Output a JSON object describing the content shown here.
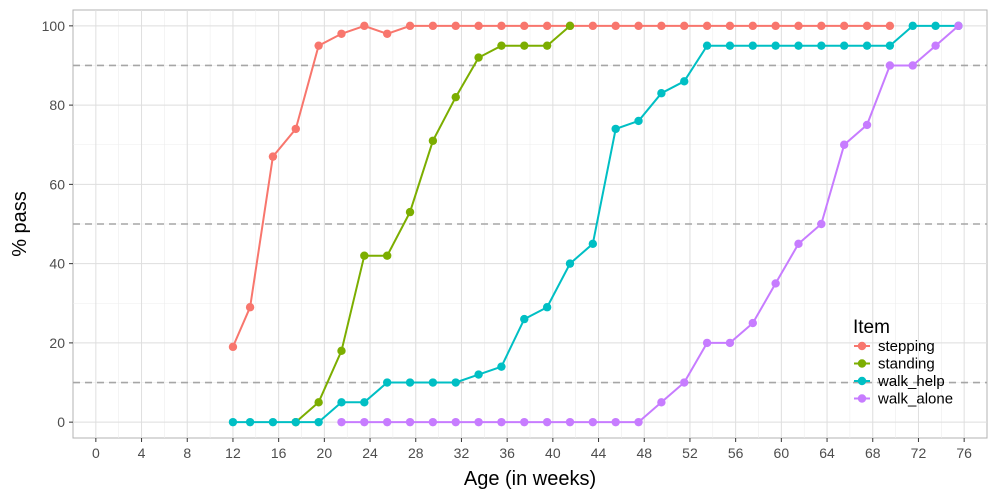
{
  "chart_data": {
    "type": "line",
    "xlabel": "Age (in weeks)",
    "ylabel": "% pass",
    "xlim": [
      -2,
      78
    ],
    "ylim": [
      -4,
      104
    ],
    "x_ticks": [
      0,
      4,
      8,
      12,
      16,
      20,
      24,
      28,
      32,
      36,
      40,
      44,
      48,
      52,
      56,
      60,
      64,
      68,
      72,
      76
    ],
    "y_ticks": [
      0,
      20,
      40,
      60,
      80,
      100
    ],
    "reference_lines": [
      10,
      50,
      90
    ],
    "grid": true,
    "legend": {
      "title": "Item",
      "placement": "bottom-right"
    },
    "series": [
      {
        "name": "stepping",
        "color": "#f8766d",
        "x": [
          12,
          13.5,
          15.5,
          17.5,
          19.5,
          21.5,
          23.5,
          25.5,
          27.5,
          29.5,
          31.5,
          33.5,
          35.5,
          37.5,
          39.5,
          41.5,
          43.5,
          45.5,
          47.5,
          49.5,
          51.5,
          53.5,
          55.5,
          57.5,
          59.5,
          61.5,
          63.5,
          65.5,
          67.5,
          69.5
        ],
        "y": [
          19,
          29,
          67,
          74,
          95,
          98,
          100,
          98,
          100,
          100,
          100,
          100,
          100,
          100,
          100,
          100,
          100,
          100,
          100,
          100,
          100,
          100,
          100,
          100,
          100,
          100,
          100,
          100,
          100,
          100
        ]
      },
      {
        "name": "standing",
        "color": "#7cae00",
        "x": [
          17.5,
          19.5,
          21.5,
          23.5,
          25.5,
          27.5,
          29.5,
          31.5,
          33.5,
          35.5,
          37.5,
          39.5,
          41.5
        ],
        "y": [
          0,
          5,
          18,
          42,
          42,
          53,
          71,
          82,
          92,
          95,
          95,
          95,
          100
        ]
      },
      {
        "name": "walk_help",
        "color": "#00bfc4",
        "x": [
          12,
          13.5,
          15.5,
          17.5,
          19.5,
          21.5,
          23.5,
          25.5,
          27.5,
          29.5,
          31.5,
          33.5,
          35.5,
          37.5,
          39.5,
          41.5,
          43.5,
          45.5,
          47.5,
          49.5,
          51.5,
          53.5,
          55.5,
          57.5,
          59.5,
          61.5,
          63.5,
          65.5,
          67.5,
          69.5,
          71.5,
          73.5,
          75.5
        ],
        "y": [
          0,
          0,
          0,
          0,
          0,
          5,
          5,
          10,
          10,
          10,
          10,
          12,
          14,
          26,
          29,
          40,
          45,
          74,
          76,
          83,
          86,
          95,
          95,
          95,
          95,
          95,
          95,
          95,
          95,
          95,
          100,
          100,
          100
        ]
      },
      {
        "name": "walk_alone",
        "color": "#c77cff",
        "x": [
          21.5,
          23.5,
          25.5,
          27.5,
          29.5,
          31.5,
          33.5,
          35.5,
          37.5,
          39.5,
          41.5,
          43.5,
          45.5,
          47.5,
          49.5,
          51.5,
          53.5,
          55.5,
          57.5,
          59.5,
          61.5,
          63.5,
          65.5,
          67.5,
          69.5,
          71.5,
          73.5,
          75.5
        ],
        "y": [
          0,
          0,
          0,
          0,
          0,
          0,
          0,
          0,
          0,
          0,
          0,
          0,
          0,
          0,
          5,
          10,
          20,
          20,
          25,
          35,
          45,
          50,
          70,
          75,
          90,
          90,
          95,
          100
        ]
      }
    ]
  }
}
